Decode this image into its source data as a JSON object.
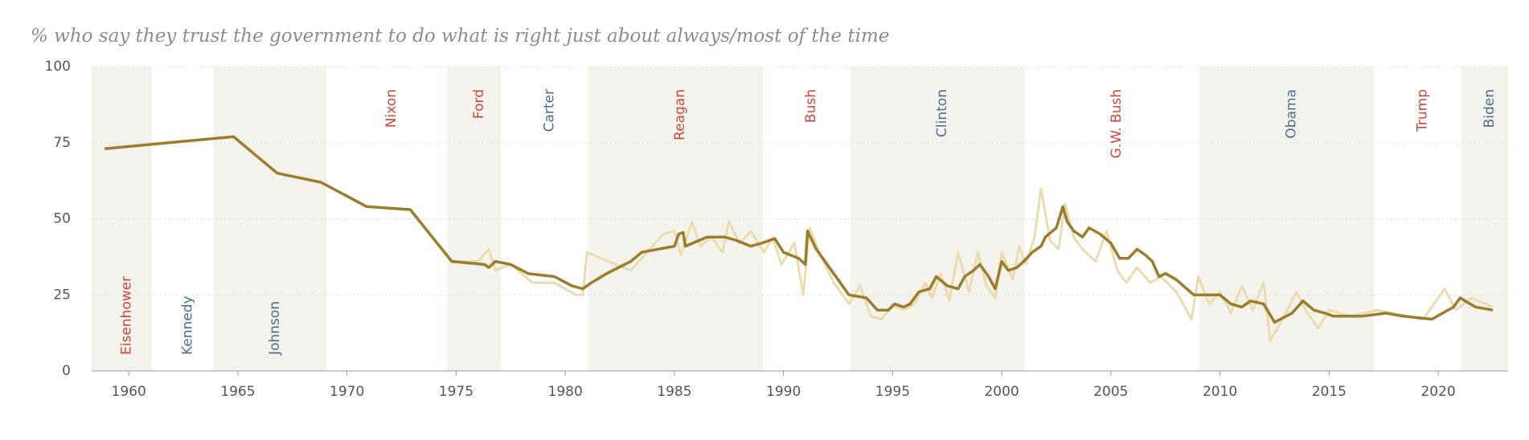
{
  "chart_data": {
    "type": "line",
    "title": "% who say they trust the government to do what is right just about always/most of the time",
    "xlim": [
      1958.3,
      2023.2
    ],
    "ylim": [
      0,
      100
    ],
    "xticks": [
      1960,
      1965,
      1970,
      1975,
      1980,
      1985,
      1990,
      1995,
      2000,
      2005,
      2010,
      2015,
      2020
    ],
    "yticks": [
      0,
      25,
      50,
      75,
      100
    ],
    "grid": true,
    "band_color": "#f4f2ec",
    "presidents": [
      {
        "name": "Eisenhower",
        "start": 1958.3,
        "end": 1961.05,
        "color": "#c8483a"
      },
      {
        "name": "Kennedy",
        "start": 1961.05,
        "end": 1963.9,
        "color": "#4f6c8c"
      },
      {
        "name": "Johnson",
        "start": 1963.9,
        "end": 1969.05,
        "color": "#4f6c8c"
      },
      {
        "name": "Nixon",
        "start": 1969.05,
        "end": 1974.6,
        "color": "#c8483a"
      },
      {
        "name": "Ford",
        "start": 1974.6,
        "end": 1977.05,
        "color": "#c8483a"
      },
      {
        "name": "Carter",
        "start": 1977.05,
        "end": 1981.05,
        "color": "#4f6c8c"
      },
      {
        "name": "Reagan",
        "start": 1981.05,
        "end": 1989.05,
        "color": "#c8483a"
      },
      {
        "name": "Bush",
        "start": 1989.05,
        "end": 1993.05,
        "color": "#c8483a"
      },
      {
        "name": "Clinton",
        "start": 1993.05,
        "end": 2001.05,
        "color": "#4f6c8c"
      },
      {
        "name": "G.W. Bush",
        "start": 2001.05,
        "end": 2009.05,
        "color": "#c8483a"
      },
      {
        "name": "Obama",
        "start": 2009.05,
        "end": 2017.05,
        "color": "#4f6c8c"
      },
      {
        "name": "Trump",
        "start": 2017.05,
        "end": 2021.05,
        "color": "#c8483a"
      },
      {
        "name": "Biden",
        "start": 2021.05,
        "end": 2023.2,
        "color": "#4f6c8c"
      }
    ],
    "series": [
      {
        "color": "#e9dcae",
        "width": 3,
        "x": [
          1958.9,
          1964.8,
          1966.8,
          1968.8,
          1970.9,
          1972.9,
          1974.8,
          1976,
          1976.5,
          1976.8,
          1977.5,
          1978.5,
          1979.5,
          1980.5,
          1980.8,
          1981,
          1982,
          1983,
          1984.5,
          1985,
          1985.3,
          1985.8,
          1986.2,
          1986.7,
          1987.2,
          1987.5,
          1988,
          1988.5,
          1989.1,
          1989.5,
          1989.9,
          1990.5,
          1990.9,
          1991.2,
          1991.7,
          1992.3,
          1993,
          1993.5,
          1994,
          1994.5,
          1995,
          1995.5,
          1996,
          1996.5,
          1996.8,
          1997.2,
          1997.6,
          1998,
          1998.5,
          1998.9,
          1999.3,
          1999.7,
          2000,
          2000.5,
          2000.8,
          2001.1,
          2001.5,
          2001.8,
          2002.2,
          2002.6,
          2002.9,
          2003.3,
          2003.7,
          2004.3,
          2004.8,
          2005.3,
          2005.7,
          2006.2,
          2006.8,
          2007.3,
          2008,
          2008.7,
          2009,
          2009.5,
          2010,
          2010.5,
          2011,
          2011.5,
          2012,
          2012.3,
          2012.8,
          2013.5,
          2014,
          2014.5,
          2015,
          2016,
          2017.2,
          2019.3,
          2020.3,
          2020.8,
          2021.5,
          2022.5
        ],
        "values": [
          73,
          77,
          65,
          62,
          54,
          53,
          36,
          36,
          40,
          33,
          35,
          29,
          29,
          25,
          25,
          39,
          36,
          33,
          45,
          46,
          38,
          49,
          41,
          44,
          39,
          49,
          42,
          46,
          39,
          44,
          35,
          42,
          25,
          47,
          38,
          29,
          22,
          28,
          18,
          17,
          22,
          20,
          22,
          29,
          24,
          32,
          23,
          39,
          26,
          39,
          28,
          24,
          39,
          30,
          41,
          35,
          44,
          60,
          43,
          40,
          55,
          44,
          40,
          36,
          46,
          33,
          29,
          34,
          29,
          31,
          26,
          17,
          31,
          22,
          26,
          19,
          28,
          20,
          29,
          10,
          16,
          26,
          19,
          14,
          20,
          18,
          20,
          17,
          27,
          20,
          24,
          21
        ]
      },
      {
        "color": "#9b7d2c",
        "width": 3.5,
        "x": [
          1958.9,
          1964.8,
          1966.8,
          1968.8,
          1970.9,
          1972.9,
          1974.8,
          1976.3,
          1976.5,
          1976.8,
          1977.5,
          1978.3,
          1979.5,
          1980.3,
          1980.8,
          1981.2,
          1981.9,
          1983,
          1983.5,
          1985,
          1985.2,
          1985.4,
          1985.5,
          1986.5,
          1987.3,
          1987.8,
          1988.5,
          1989,
          1989.6,
          1990,
          1990.7,
          1991,
          1991.1,
          1991.5,
          1992.3,
          1993,
          1993.8,
          1994.3,
          1994.8,
          1995.1,
          1995.5,
          1995.8,
          1996.2,
          1996.7,
          1997,
          1997.5,
          1998,
          1998.3,
          1998.7,
          1999,
          1999.4,
          1999.7,
          2000,
          2000.3,
          2000.7,
          2001,
          2001.4,
          2001.8,
          2002,
          2002.5,
          2002.8,
          2003,
          2003.3,
          2003.7,
          2004,
          2004.5,
          2005,
          2005.4,
          2005.8,
          2006.2,
          2006.6,
          2006.9,
          2007.2,
          2007.5,
          2008,
          2008.8,
          2010,
          2010.5,
          2011,
          2011.4,
          2012,
          2012.5,
          2013.3,
          2013.8,
          2014.3,
          2014.8,
          2015.2,
          2016.5,
          2017.6,
          2018.4,
          2019.7,
          2020.7,
          2021,
          2021.7,
          2022.5
        ],
        "values": [
          73,
          77,
          65,
          62,
          54,
          53,
          36,
          35,
          34,
          36,
          35,
          32,
          31,
          28,
          27,
          29,
          32,
          36,
          39,
          41,
          45,
          45.5,
          41,
          44,
          44,
          43,
          41,
          42,
          43.5,
          39,
          37,
          35,
          46,
          40,
          32,
          25,
          24,
          20,
          20,
          22,
          21,
          22,
          26,
          27,
          31,
          28,
          27,
          31,
          33,
          35,
          31,
          27,
          36,
          33,
          34,
          36,
          39,
          41,
          44,
          47,
          54,
          49,
          46,
          44,
          47,
          45,
          42,
          37,
          37,
          40,
          38,
          36,
          31,
          32,
          30,
          25,
          25,
          22,
          21,
          23,
          22,
          16,
          19,
          23,
          20,
          19,
          18,
          18,
          19,
          18,
          17,
          21,
          24,
          21,
          20
        ]
      }
    ]
  }
}
